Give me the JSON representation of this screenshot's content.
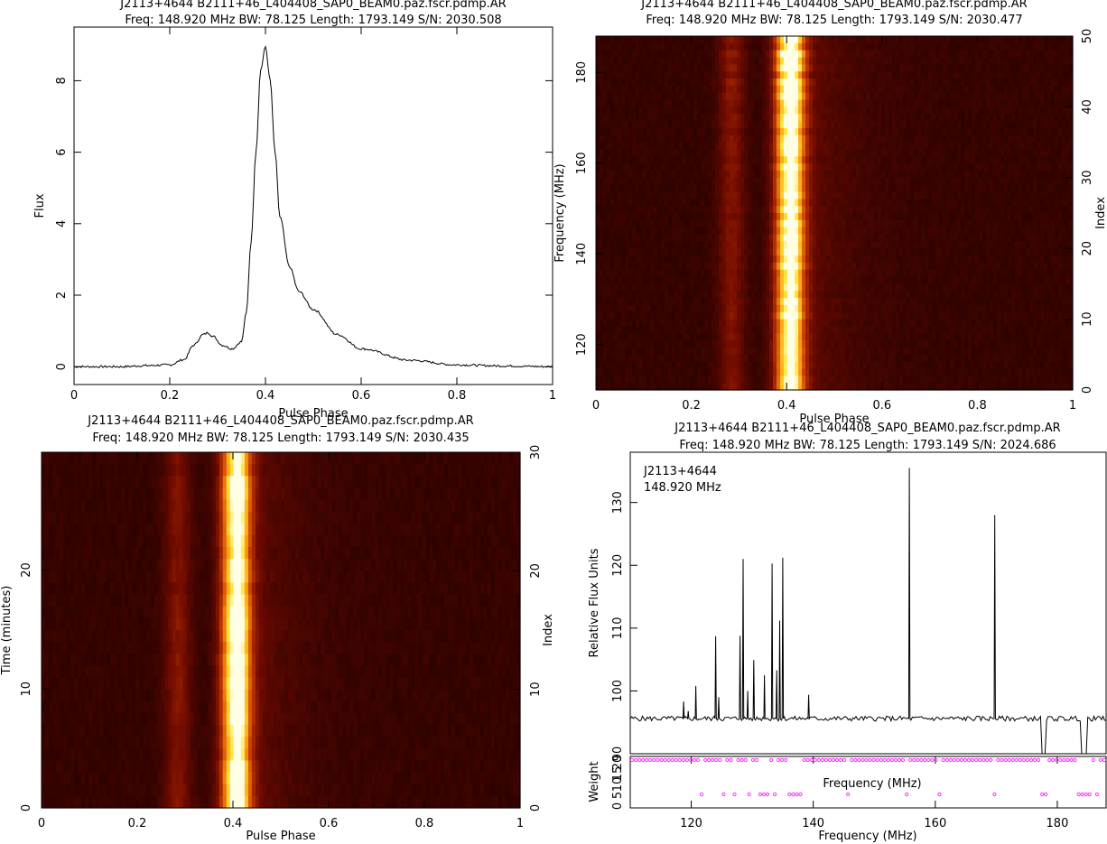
{
  "colors": {
    "heat_low": "#1a0000",
    "heat_mid": "#c04000",
    "heat_high": "#ffffe0",
    "axis": "#000000",
    "weight_marker": "#ff33ff"
  },
  "chart_data": [
    {
      "id": "profile",
      "type": "line",
      "title": "J2113+4644  B2111+46_L404408_SAP0_BEAM0.paz.fscr.pdmp.AR",
      "subtitle": "Freq: 148.920 MHz BW: 78.125 Length: 1793.149 S/N: 2030.508",
      "xlabel": "Pulse Phase",
      "ylabel": "Flux",
      "xlim": [
        0,
        1
      ],
      "ylim": [
        -0.5,
        9.5
      ],
      "xticks": [
        "0",
        "0.2",
        "0.4",
        "0.6",
        "0.8",
        "1"
      ],
      "yticks": [
        "0",
        "2",
        "4",
        "6",
        "8"
      ],
      "x": [
        0,
        0.05,
        0.1,
        0.15,
        0.2,
        0.23,
        0.25,
        0.27,
        0.28,
        0.29,
        0.31,
        0.33,
        0.35,
        0.36,
        0.37,
        0.38,
        0.39,
        0.4,
        0.41,
        0.42,
        0.43,
        0.45,
        0.47,
        0.5,
        0.55,
        0.6,
        0.7,
        0.8,
        0.9,
        1
      ],
      "values": [
        0,
        0,
        0,
        0.03,
        0.05,
        0.2,
        0.6,
        0.9,
        0.95,
        0.85,
        0.6,
        0.5,
        0.7,
        1.5,
        3.5,
        6.0,
        8.3,
        8.95,
        8.0,
        6.0,
        4.2,
        2.8,
        2.1,
        1.6,
        0.9,
        0.5,
        0.18,
        0.05,
        0.02,
        0
      ]
    },
    {
      "id": "phase-frequency",
      "type": "heatmap",
      "title": "J2113+4644  B2111+46_L404408_SAP0_BEAM0.paz.fscr.pdmp.AR",
      "subtitle": "Freq: 148.920 MHz BW: 78.125 Length: 1793.149 S/N: 2030.477",
      "xlabel": "Pulse Phase",
      "ylabel": "Frequency (MHz)",
      "y2label": "Index",
      "xlim": [
        0,
        1
      ],
      "ylim": [
        110,
        188
      ],
      "y2lim": [
        0,
        50
      ],
      "xticks": [
        "0",
        "0.2",
        "0.4",
        "0.6",
        "0.8",
        "1"
      ],
      "yticks": [
        "120",
        "140",
        "160",
        "180"
      ],
      "y2ticks": [
        "0",
        "10",
        "20",
        "30",
        "40",
        "50"
      ],
      "rows": 50,
      "pulse_center": 0.405,
      "bright_rows_from_top": [
        2,
        4,
        6,
        8
      ]
    },
    {
      "id": "phase-time",
      "type": "heatmap",
      "title": "J2113+4644  B2111+46_L404408_SAP0_BEAM0.paz.fscr.pdmp.AR",
      "subtitle": "Freq: 148.920 MHz BW: 78.125 Length: 1793.149 S/N: 2030.435",
      "xlabel": "Pulse Phase",
      "ylabel": "Time (minutes)",
      "y2label": "Index",
      "xlim": [
        0,
        1
      ],
      "ylim": [
        0,
        29.9
      ],
      "y2lim": [
        0,
        30
      ],
      "xticks": [
        "0",
        "0.2",
        "0.4",
        "0.6",
        "0.8",
        "1"
      ],
      "yticks": [
        "0",
        "10",
        "20"
      ],
      "y2ticks": [
        "0",
        "10",
        "20",
        "30"
      ],
      "rows": 30,
      "pulse_center": 0.405
    },
    {
      "id": "bandpass",
      "type": "line",
      "title": "J2113+4644  B2111+46_L404408_SAP0_BEAM0.paz.fscr.pdmp.AR",
      "subtitle": "Freq: 148.920 MHz BW: 78.125 Length: 1793.149 S/N: 2024.686",
      "annotations": [
        "J2113+4644",
        "148.920 MHz"
      ],
      "xlabel": "Frequency (MHz)",
      "ylabel": "Relative Flux Units",
      "weight_ylabel": "Weight",
      "weight_inner_label": "Frequency (MHz)",
      "xlim": [
        110,
        188
      ],
      "ylim": [
        90,
        138
      ],
      "xticks": [
        "120",
        "140",
        "160",
        "180"
      ],
      "yticks": [
        "90",
        "100",
        "110",
        "120",
        "130"
      ],
      "weight_yticks": [
        "0",
        "5",
        "10",
        "15",
        "20"
      ],
      "baseline": 95.6,
      "spikes": [
        {
          "x": 118.8,
          "y": 98.3
        },
        {
          "x": 119.5,
          "y": 96.8
        },
        {
          "x": 120.8,
          "y": 100.8
        },
        {
          "x": 123.9,
          "y": 108.7
        },
        {
          "x": 124.6,
          "y": 99.0
        },
        {
          "x": 127.9,
          "y": 108.8
        },
        {
          "x": 128.6,
          "y": 121.0
        },
        {
          "x": 129.3,
          "y": 100.0
        },
        {
          "x": 130.2,
          "y": 104.9
        },
        {
          "x": 132.1,
          "y": 102.5
        },
        {
          "x": 133.3,
          "y": 120.3
        },
        {
          "x": 133.9,
          "y": 103.3
        },
        {
          "x": 134.6,
          "y": 111.2
        },
        {
          "x": 135.1,
          "y": 121.2
        },
        {
          "x": 139.3,
          "y": 99.4
        },
        {
          "x": 155.7,
          "y": 135.5
        },
        {
          "x": 169.7,
          "y": 128.0
        }
      ],
      "zero_gaps": [
        [
          177.3,
          178.0
        ],
        [
          183.9,
          184.9
        ]
      ],
      "weights_low_x": [
        121.5,
        125.2,
        127.1,
        129.4,
        131.6,
        132.4,
        133.8,
        136.2,
        137.0,
        137.6,
        145.6,
        155.5,
        160.8,
        169.6,
        177.3,
        177.6,
        178.0,
        183.6,
        184.1,
        184.7,
        185.5,
        186.7
      ]
    }
  ]
}
